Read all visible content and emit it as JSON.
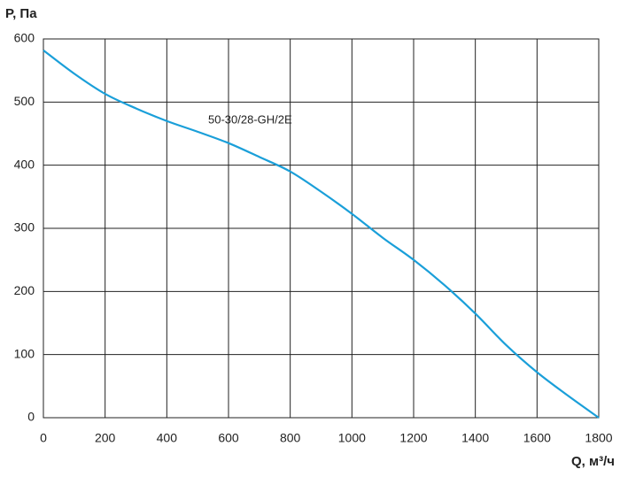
{
  "chart_data": {
    "type": "line",
    "y_label": "P, Па",
    "x_label": "Q, м³/ч",
    "annotation": "50-30/28-GH/2E",
    "x": [
      0,
      100,
      200,
      300,
      400,
      500,
      600,
      700,
      800,
      900,
      1000,
      1100,
      1200,
      1300,
      1400,
      1500,
      1600,
      1700,
      1800
    ],
    "series": [
      {
        "name": "50-30/28-GH/2E",
        "color": "#1a9fd9",
        "values": [
          582,
          545,
          513,
          490,
          470,
          453,
          435,
          413,
          390,
          358,
          323,
          285,
          250,
          210,
          165,
          115,
          72,
          35,
          0
        ]
      }
    ],
    "xlim": [
      0,
      1800
    ],
    "xticks": [
      0,
      200,
      400,
      600,
      800,
      1000,
      1200,
      1400,
      1600,
      1800
    ],
    "ylim": [
      0,
      600
    ],
    "yticks": [
      0,
      100,
      200,
      300,
      400,
      500,
      600
    ],
    "grid": true
  }
}
